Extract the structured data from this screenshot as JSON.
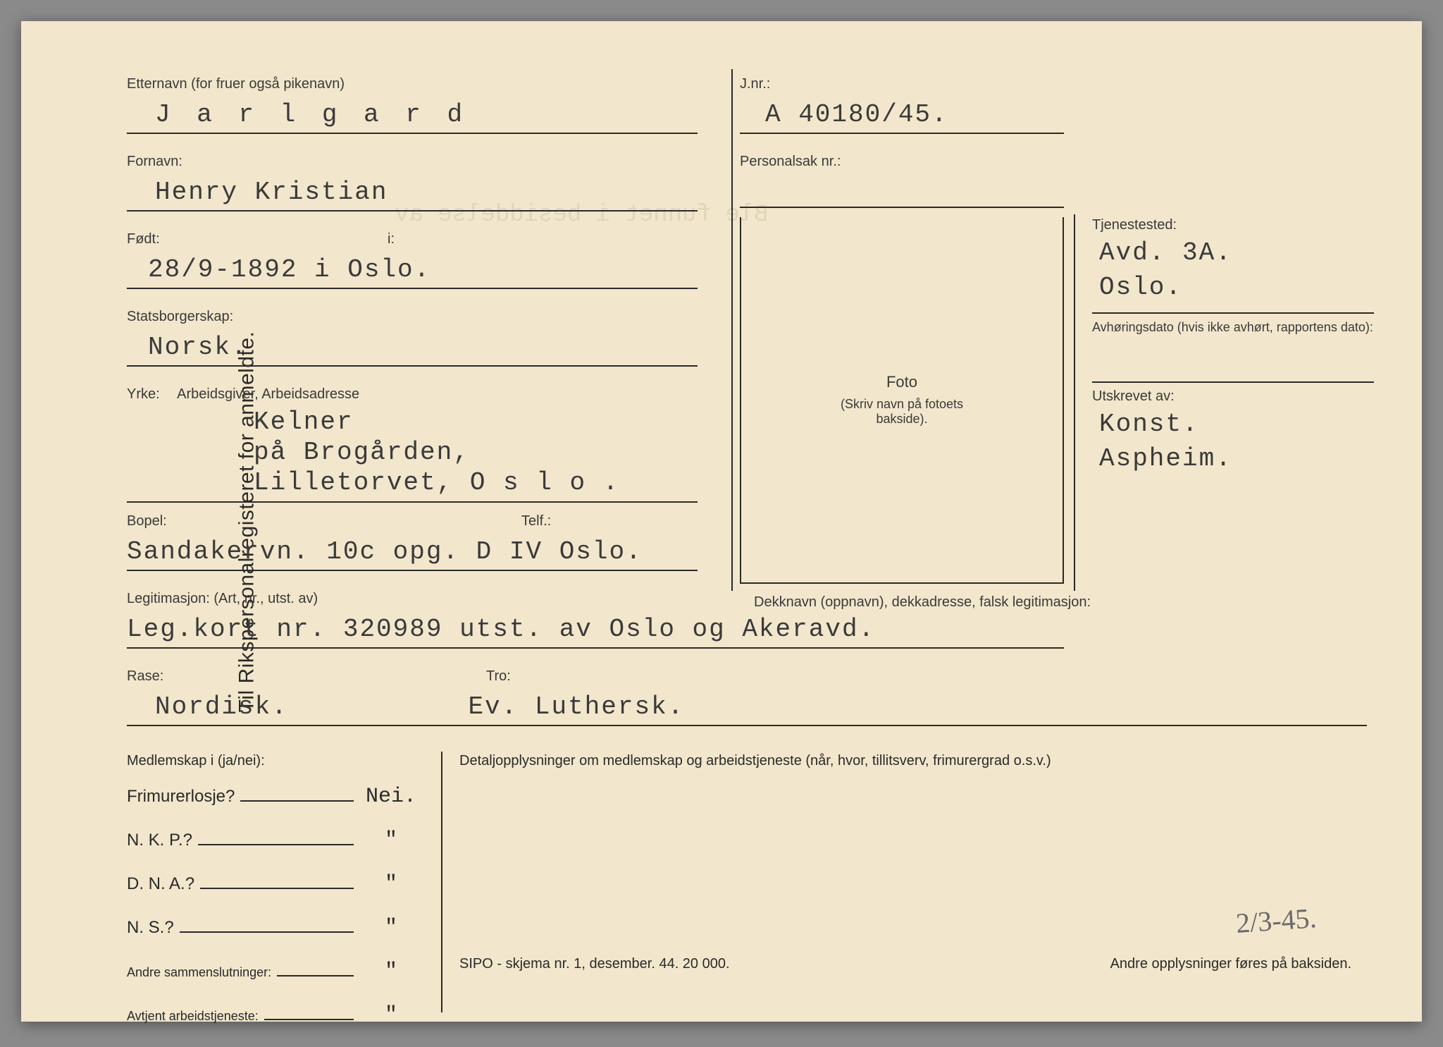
{
  "side_title": "Til Rikspersonalregisteret for anmeldte.",
  "labels": {
    "etternavn": "Etternavn (for fruer også pikenavn)",
    "fornavn": "Fornavn:",
    "fodt": "Født:",
    "fodt_i": "i:",
    "stats": "Statsborgerskap:",
    "yrke": "Yrke:",
    "arbeidsgiver": "Arbeidsgiver, Arbeidsadresse",
    "bopel": "Bopel:",
    "telf": "Telf.:",
    "leg": "Legitimasjon: (Art, nr., utst. av)",
    "rase": "Rase:",
    "tro": "Tro:",
    "jnr": "J.nr.:",
    "personalsak": "Personalsak nr.:",
    "foto": "Foto",
    "foto_sub": "(Skriv navn på fotoets bakside).",
    "tjenestested": "Tjenestested:",
    "avhor": "Avhøringsdato (hvis ikke avhørt, rapportens dato):",
    "utskrevet": "Utskrevet av:",
    "dekk": "Dekknavn (oppnavn), dekkadresse, falsk legitimasjon:",
    "medlemskap": "Medlemskap i (ja/nei):",
    "detalj": "Detaljopplysninger om medlemskap og arbeidstjeneste (når, hvor, tillitsverv, frimurergrad o.s.v.)",
    "footer1": "SIPO - skjema nr. 1, desember. 44. 20 000.",
    "footer2": "Andre opplysninger føres på baksiden."
  },
  "values": {
    "etternavn": "J a r l g a r d",
    "fornavn": "Henry Kristian",
    "fodt": "28/9-1892 i Oslo.",
    "stats": "Norsk.",
    "yrke1": "Kelner",
    "yrke2": "på Brogården,",
    "yrke3": "Lilletorvet, O s l o .",
    "bopel": "Sandakervn. 10c opg. D IV Oslo.",
    "leg": "Leg.kort nr. 320989 utst. av Oslo og  Akeravd.",
    "rase": "Nordisk.",
    "tro": "Ev. Luthersk.",
    "jnr": "A 40180/45.",
    "tjenestested1": "Avd. 3A.",
    "tjenestested2": "Oslo.",
    "utskrevet1": "Konst.",
    "utskrevet2": "Aspheim."
  },
  "membership": [
    {
      "label": "Frimurerlosje?",
      "value": "Nei."
    },
    {
      "label": "N. K. P.?",
      "value": "\""
    },
    {
      "label": "D. N. A.?",
      "value": "\""
    },
    {
      "label": "N. S.?",
      "value": "\""
    }
  ],
  "membership_small": [
    {
      "label": "Andre sammenslutninger:",
      "value": "\""
    },
    {
      "label": "Avtjent arbeidstjeneste:",
      "value": "\""
    }
  ],
  "handwritten": "2/3-45.",
  "bleed": "Ble funnet i besiddelse av",
  "colors": {
    "card_bg": "#f2e6cc",
    "page_bg": "#8a8a8a",
    "ink": "#2a2a2a",
    "typed": "#3a3a3a",
    "bleed": "#d4c7a8",
    "pencil": "#6a6a6a"
  }
}
